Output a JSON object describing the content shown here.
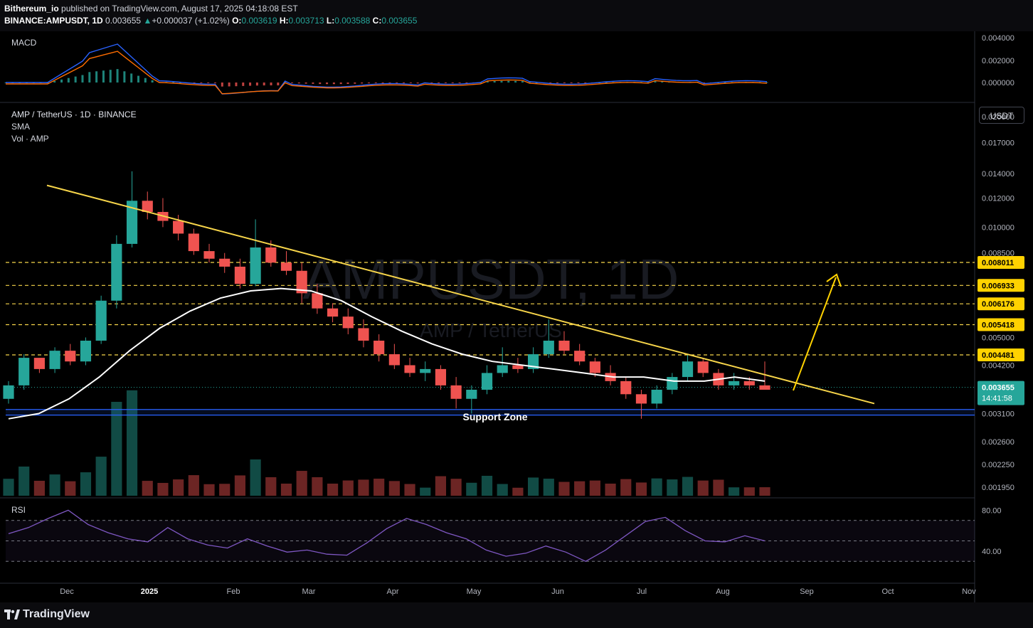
{
  "header": {
    "publisher": "Bithereum_io",
    "published_text": " published on TradingView.com, August 17, 2025 04:18:08 EST",
    "symbol": "BINANCE:AMPUSDT, 1D",
    "last": "0.003655",
    "change": "+0.000037 (+1.02%)",
    "o_label": "O:",
    "o_value": "0.003619",
    "h_label": "H:",
    "h_value": "0.003713",
    "l_label": "L:",
    "l_value": "0.003588",
    "c_label": "C:",
    "c_value": "0.003655"
  },
  "panes": {
    "macd_label": "MACD",
    "main_title": "AMP / TetherUS · 1D · BINANCE",
    "sma_label": "SMA",
    "vol_label": "Vol · AMP",
    "rsi_label": "RSI",
    "currency_button": "USDT"
  },
  "watermark": {
    "big": "AMPUSDT, 1D",
    "small": "AMP / TetherUS"
  },
  "annotation": {
    "support_label": "Support Zone"
  },
  "footer": {
    "brand": "TradingView"
  },
  "colors": {
    "background": "#0b0b0e",
    "up": "#26a69a",
    "down": "#ef5350",
    "trendline": "#f7d54a",
    "target": "#ffd200",
    "sma": "#ffffff",
    "support": "#2962ff",
    "rsi": "#7e57c2",
    "macd": "#2962ff",
    "signal": "#ff6d00"
  },
  "chart_data": {
    "type": "candlestick",
    "symbol": "AMP / TetherUS",
    "timeframe": "1D",
    "exchange": "BINANCE",
    "price_axis_ticks": [
      "0.020000",
      "0.017000",
      "0.014000",
      "0.012000",
      "0.010000",
      "0.008500",
      "0.005000",
      "0.004200",
      "0.003100",
      "0.002600",
      "0.002250",
      "0.001950"
    ],
    "horizontal_levels": [
      "0.008011",
      "0.006933",
      "0.006176",
      "0.005418",
      "0.004481"
    ],
    "last_price": "0.003655",
    "countdown": "14:41:58",
    "x_ticks": [
      "Dec",
      "2025",
      "Feb",
      "Mar",
      "Apr",
      "May",
      "Jun",
      "Jul",
      "Aug",
      "Sep",
      "Oct",
      "Nov"
    ],
    "ohlc_approx": [
      [
        0.0034,
        0.0038,
        0.0033,
        0.0037
      ],
      [
        0.0037,
        0.0045,
        0.0036,
        0.0044
      ],
      [
        0.0044,
        0.0043,
        0.004,
        0.0041
      ],
      [
        0.0041,
        0.0047,
        0.004,
        0.0046
      ],
      [
        0.0046,
        0.0048,
        0.0042,
        0.0043
      ],
      [
        0.0043,
        0.005,
        0.0042,
        0.0049
      ],
      [
        0.0049,
        0.0065,
        0.0048,
        0.0063
      ],
      [
        0.0063,
        0.0095,
        0.006,
        0.009
      ],
      [
        0.009,
        0.0142,
        0.0088,
        0.0118
      ],
      [
        0.0118,
        0.0125,
        0.0105,
        0.011
      ],
      [
        0.011,
        0.012,
        0.01,
        0.0104
      ],
      [
        0.0104,
        0.0108,
        0.0092,
        0.0096
      ],
      [
        0.0096,
        0.0099,
        0.0084,
        0.0086
      ],
      [
        0.0086,
        0.009,
        0.008,
        0.0082
      ],
      [
        0.0082,
        0.0085,
        0.0075,
        0.0078
      ],
      [
        0.0078,
        0.0082,
        0.0068,
        0.007
      ],
      [
        0.007,
        0.0105,
        0.0069,
        0.0088
      ],
      [
        0.0088,
        0.0092,
        0.0078,
        0.008
      ],
      [
        0.008,
        0.0086,
        0.0074,
        0.0076
      ],
      [
        0.0076,
        0.008,
        0.0062,
        0.0066
      ],
      [
        0.0066,
        0.007,
        0.0058,
        0.006
      ],
      [
        0.006,
        0.0062,
        0.0055,
        0.0057
      ],
      [
        0.0057,
        0.006,
        0.0051,
        0.0053
      ],
      [
        0.0053,
        0.0056,
        0.0047,
        0.0049
      ],
      [
        0.0049,
        0.0051,
        0.0043,
        0.0045
      ],
      [
        0.0045,
        0.0048,
        0.0041,
        0.0042
      ],
      [
        0.0042,
        0.0044,
        0.0039,
        0.004
      ],
      [
        0.004,
        0.0043,
        0.0038,
        0.0041
      ],
      [
        0.0041,
        0.0042,
        0.0036,
        0.0037
      ],
      [
        0.0037,
        0.0039,
        0.0032,
        0.0034
      ],
      [
        0.0034,
        0.0037,
        0.0031,
        0.0036
      ],
      [
        0.0036,
        0.0042,
        0.0035,
        0.004
      ],
      [
        0.004,
        0.0047,
        0.0039,
        0.0042
      ],
      [
        0.0042,
        0.0044,
        0.004,
        0.0041
      ],
      [
        0.0041,
        0.0047,
        0.004,
        0.0045
      ],
      [
        0.0045,
        0.0056,
        0.0044,
        0.0049
      ],
      [
        0.0049,
        0.0052,
        0.0045,
        0.0046
      ],
      [
        0.0046,
        0.0048,
        0.0042,
        0.0043
      ],
      [
        0.0043,
        0.0044,
        0.0039,
        0.004
      ],
      [
        0.004,
        0.0042,
        0.0037,
        0.0038
      ],
      [
        0.0038,
        0.0039,
        0.0034,
        0.0035
      ],
      [
        0.0035,
        0.0036,
        0.003,
        0.0033
      ],
      [
        0.0033,
        0.0037,
        0.0032,
        0.0036
      ],
      [
        0.0036,
        0.004,
        0.0035,
        0.0039
      ],
      [
        0.0039,
        0.0045,
        0.0038,
        0.0043
      ],
      [
        0.0043,
        0.0044,
        0.0039,
        0.004
      ],
      [
        0.004,
        0.0041,
        0.0036,
        0.0037
      ],
      [
        0.0037,
        0.004,
        0.0036,
        0.0038
      ],
      [
        0.0038,
        0.0039,
        0.0036,
        0.0037
      ],
      [
        0.0037,
        0.0043,
        0.0036,
        0.0036
      ]
    ],
    "sma_approx": [
      0.003,
      0.0031,
      0.0034,
      0.0039,
      0.0046,
      0.0053,
      0.0059,
      0.0064,
      0.0067,
      0.0068,
      0.0067,
      0.0063,
      0.0057,
      0.0052,
      0.0048,
      0.0045,
      0.0043,
      0.0042,
      0.0041,
      0.004,
      0.0039,
      0.0039,
      0.0038,
      0.0038,
      0.0039,
      0.0038
    ],
    "rsi_levels": [
      "80.00",
      "40.00"
    ],
    "rsi_approx": [
      57,
      63,
      72,
      80,
      66,
      58,
      52,
      49,
      63,
      52,
      46,
      43,
      52,
      45,
      39,
      41,
      37,
      36,
      48,
      62,
      72,
      66,
      58,
      52,
      41,
      35,
      38,
      45,
      39,
      30,
      41,
      55,
      69,
      73,
      60,
      50,
      49,
      55,
      50
    ],
    "macd_ticks": [
      "0.004000",
      "0.002000",
      "0.000000"
    ],
    "trendline": {
      "from_price": 0.013,
      "to_price": 0.0033,
      "label": ""
    },
    "support_zone": {
      "from": 0.00307,
      "to": 0.00318
    }
  }
}
